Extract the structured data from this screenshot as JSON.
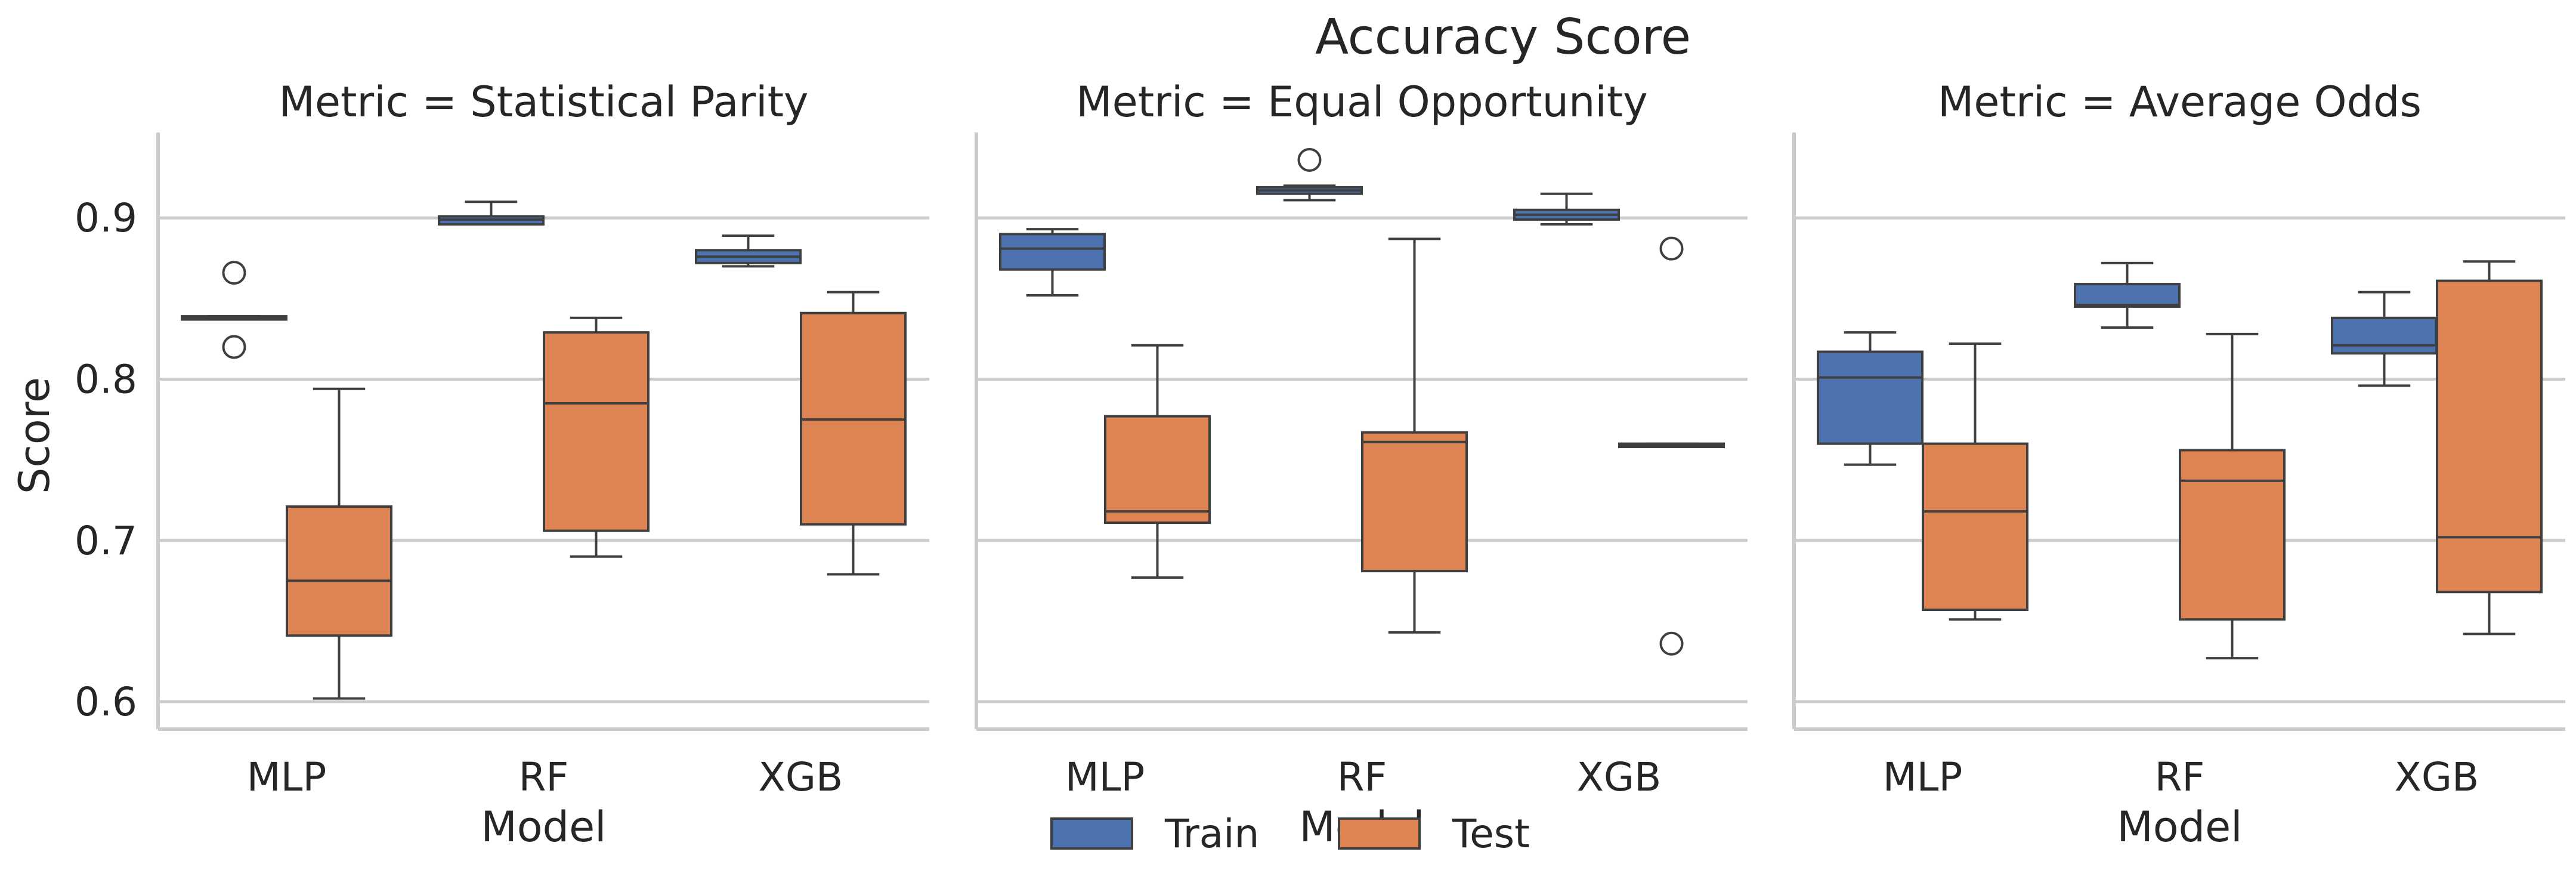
{
  "chart_data": {
    "type": "box",
    "title": "Accuracy Score",
    "ylabel": "Score",
    "xlabel": "Model",
    "ylim": [
      0.583,
      0.953
    ],
    "yticks": [
      "0.6",
      "0.7",
      "0.8",
      "0.9"
    ],
    "grid": "horizontal",
    "legend_position": "bottom-center",
    "categories": [
      "MLP",
      "RF",
      "XGB"
    ],
    "series": [
      {
        "name": "Train",
        "color": "#4c72b0"
      },
      {
        "name": "Test",
        "color": "#dd8452"
      }
    ],
    "panels": [
      {
        "title": "Metric = Statistical Parity",
        "boxes": [
          {
            "model": "MLP",
            "series": "Train",
            "whislo": 0.837,
            "q1": 0.837,
            "med": 0.838,
            "q3": 0.839,
            "whishi": 0.839,
            "fliers": [
              0.866,
              0.82
            ]
          },
          {
            "model": "MLP",
            "series": "Test",
            "whislo": 0.602,
            "q1": 0.641,
            "med": 0.675,
            "q3": 0.721,
            "whishi": 0.794,
            "fliers": []
          },
          {
            "model": "RF",
            "series": "Train",
            "whislo": 0.896,
            "q1": 0.896,
            "med": 0.899,
            "q3": 0.901,
            "whishi": 0.91,
            "fliers": []
          },
          {
            "model": "RF",
            "series": "Test",
            "whislo": 0.69,
            "q1": 0.706,
            "med": 0.785,
            "q3": 0.829,
            "whishi": 0.838,
            "fliers": []
          },
          {
            "model": "XGB",
            "series": "Train",
            "whislo": 0.87,
            "q1": 0.872,
            "med": 0.876,
            "q3": 0.88,
            "whishi": 0.889,
            "fliers": []
          },
          {
            "model": "XGB",
            "series": "Test",
            "whislo": 0.679,
            "q1": 0.71,
            "med": 0.775,
            "q3": 0.841,
            "whishi": 0.854,
            "fliers": []
          }
        ]
      },
      {
        "title": "Metric = Equal Opportunity",
        "boxes": [
          {
            "model": "MLP",
            "series": "Train",
            "whislo": 0.852,
            "q1": 0.868,
            "med": 0.881,
            "q3": 0.89,
            "whishi": 0.893,
            "fliers": []
          },
          {
            "model": "MLP",
            "series": "Test",
            "whislo": 0.677,
            "q1": 0.711,
            "med": 0.718,
            "q3": 0.777,
            "whishi": 0.821,
            "fliers": []
          },
          {
            "model": "RF",
            "series": "Train",
            "whislo": 0.911,
            "q1": 0.915,
            "med": 0.917,
            "q3": 0.919,
            "whishi": 0.92,
            "fliers": [
              0.936
            ]
          },
          {
            "model": "RF",
            "series": "Test",
            "whislo": 0.643,
            "q1": 0.681,
            "med": 0.761,
            "q3": 0.767,
            "whishi": 0.887,
            "fliers": []
          },
          {
            "model": "XGB",
            "series": "Train",
            "whislo": 0.896,
            "q1": 0.899,
            "med": 0.902,
            "q3": 0.905,
            "whishi": 0.915,
            "fliers": []
          },
          {
            "model": "XGB",
            "series": "Test",
            "whislo": 0.758,
            "q1": 0.758,
            "med": 0.759,
            "q3": 0.76,
            "whishi": 0.76,
            "fliers": [
              0.881,
              0.636
            ]
          }
        ]
      },
      {
        "title": "Metric = Average Odds",
        "boxes": [
          {
            "model": "MLP",
            "series": "Train",
            "whislo": 0.747,
            "q1": 0.76,
            "med": 0.801,
            "q3": 0.817,
            "whishi": 0.829,
            "fliers": []
          },
          {
            "model": "MLP",
            "series": "Test",
            "whislo": 0.651,
            "q1": 0.657,
            "med": 0.718,
            "q3": 0.76,
            "whishi": 0.822,
            "fliers": []
          },
          {
            "model": "RF",
            "series": "Train",
            "whislo": 0.832,
            "q1": 0.845,
            "med": 0.846,
            "q3": 0.859,
            "whishi": 0.872,
            "fliers": []
          },
          {
            "model": "RF",
            "series": "Test",
            "whislo": 0.627,
            "q1": 0.651,
            "med": 0.737,
            "q3": 0.756,
            "whishi": 0.828,
            "fliers": []
          },
          {
            "model": "XGB",
            "series": "Train",
            "whislo": 0.796,
            "q1": 0.816,
            "med": 0.821,
            "q3": 0.838,
            "whishi": 0.854,
            "fliers": []
          },
          {
            "model": "XGB",
            "series": "Test",
            "whislo": 0.642,
            "q1": 0.668,
            "med": 0.702,
            "q3": 0.861,
            "whishi": 0.873,
            "fliers": []
          }
        ]
      }
    ]
  }
}
